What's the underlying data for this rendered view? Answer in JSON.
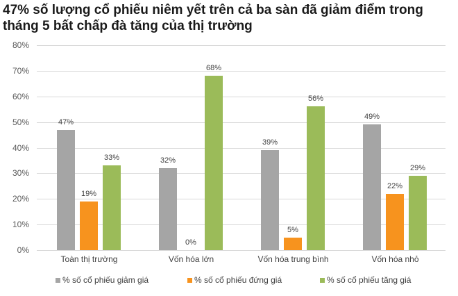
{
  "title": "47% số lượng cổ phiếu niêm yết trên cả ba sàn đã giảm điểm trong tháng 5 bất chấp đà tăng của thị trường",
  "chart_data": {
    "type": "bar",
    "title": "47% số lượng cổ phiếu niêm yết trên cả ba sàn đã giảm điểm trong tháng 5 bất chấp đà tăng của thị trường",
    "xlabel": "",
    "ylabel": "",
    "ylim": [
      0,
      80
    ],
    "yticks": [
      "0%",
      "10%",
      "20%",
      "30%",
      "40%",
      "50%",
      "60%",
      "70%",
      "80%"
    ],
    "grid": true,
    "legend_position": "bottom",
    "categories": [
      "Toàn thị trường",
      "Vốn hóa lớn",
      "Vốn hóa trung bình",
      "Vốn hóa nhỏ"
    ],
    "series": [
      {
        "name": "% số cổ phiếu giảm giá",
        "color": "#A5A5A5",
        "values": [
          47,
          32,
          39,
          49
        ],
        "labels": [
          "47%",
          "32%",
          "39%",
          "49%"
        ]
      },
      {
        "name": "% số cổ phiếu đứng giá",
        "color": "#F7931E",
        "values": [
          19,
          0,
          5,
          22
        ],
        "labels": [
          "19%",
          "0%",
          "5%",
          "22%"
        ]
      },
      {
        "name": "% số cổ phiếu tăng giá",
        "color": "#9BBB59",
        "values": [
          33,
          68,
          56,
          29
        ],
        "labels": [
          "33%",
          "68%",
          "56%",
          "29%"
        ]
      }
    ]
  }
}
